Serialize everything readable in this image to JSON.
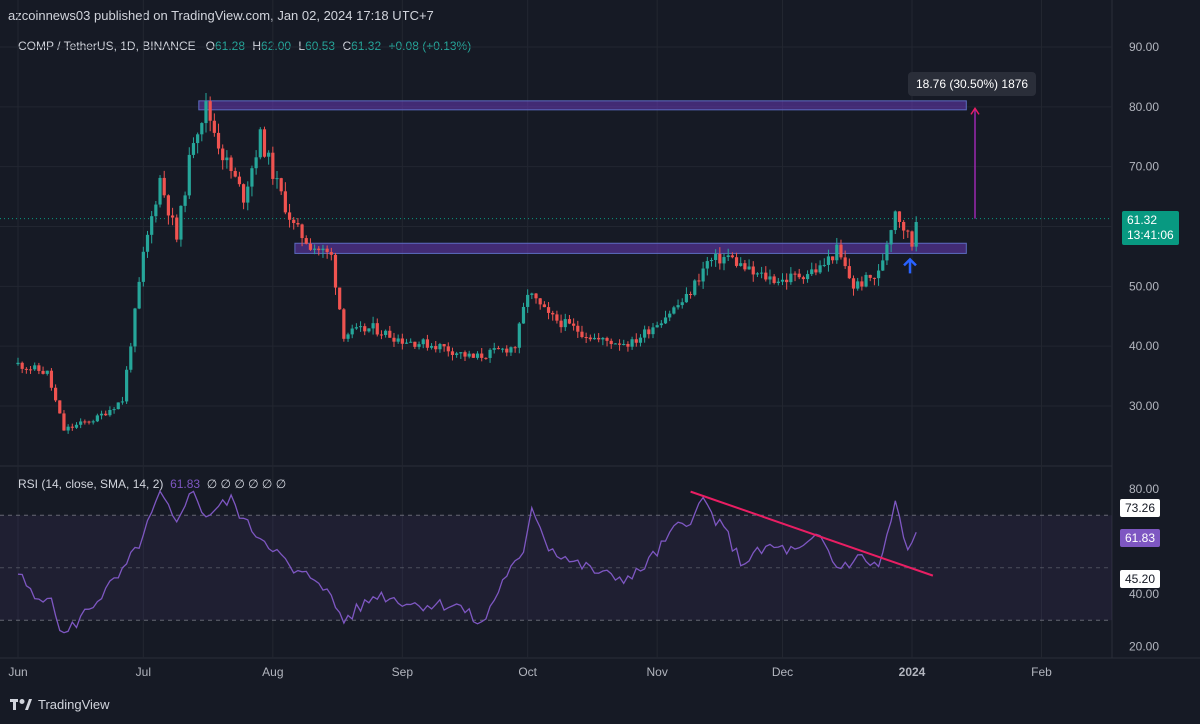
{
  "header": {
    "text": "azcoinnews03 published on TradingView.com, Jan 02, 2024 17:18 UTC+7"
  },
  "legend": {
    "symbol": "COMP / TetherUS, 1D, BINANCE",
    "open_label": "O",
    "open": "61.28",
    "high_label": "H",
    "high": "62.00",
    "low_label": "L",
    "low": "60.53",
    "close_label": "C",
    "close": "61.32",
    "change": "+0.08 (+0.13%)"
  },
  "measure_label": "18.76 (30.50%) 1876",
  "price_tag": {
    "price": "61.32",
    "countdown": "13:41:06"
  },
  "rsi_legend": {
    "title": "RSI (14, close, SMA, 14, 2)",
    "value": "61.83",
    "rest": "∅  ∅  ∅  ∅  ∅  ∅"
  },
  "rsi_tags": {
    "upper": "73.26",
    "current": "61.83",
    "lower": "45.20"
  },
  "footer": {
    "brand": "TradingView"
  },
  "colors": {
    "up": "#26a69a",
    "down": "#ef5350",
    "rsi": "#7e57c2",
    "zone": "#673ab7",
    "trend": "#e91e63",
    "arrow": "#2962ff"
  },
  "chart_data": [
    {
      "type": "candlestick",
      "title": "COMP / TetherUS, 1D, BINANCE",
      "ylim": [
        20,
        94
      ],
      "y_ticks": [
        "90.00",
        "80.00",
        "70.00",
        "60.00",
        "50.00",
        "40.00",
        "30.00"
      ],
      "x_ticks": [
        "Jun",
        "Jul",
        "Aug",
        "Sep",
        "Oct",
        "Nov",
        "Dec",
        "2024",
        "Feb"
      ],
      "close_path": [
        [
          "2023-06-01",
          37
        ],
        [
          "2023-06-08",
          35.5
        ],
        [
          "2023-06-12",
          26
        ],
        [
          "2023-06-20",
          28
        ],
        [
          "2023-06-26",
          31
        ],
        [
          "2023-07-01",
          55
        ],
        [
          "2023-07-05",
          68
        ],
        [
          "2023-07-09",
          58
        ],
        [
          "2023-07-13",
          75
        ],
        [
          "2023-07-16",
          80
        ],
        [
          "2023-07-20",
          72
        ],
        [
          "2023-07-25",
          65
        ],
        [
          "2023-07-29",
          75
        ],
        [
          "2023-08-02",
          67
        ],
        [
          "2023-08-06",
          60
        ],
        [
          "2023-08-10",
          57
        ],
        [
          "2023-08-15",
          55
        ],
        [
          "2023-08-18",
          42
        ],
        [
          "2023-08-25",
          43
        ],
        [
          "2023-09-01",
          41
        ],
        [
          "2023-09-10",
          40
        ],
        [
          "2023-09-18",
          38
        ],
        [
          "2023-09-28",
          40
        ],
        [
          "2023-10-01",
          49
        ],
        [
          "2023-10-06",
          45
        ],
        [
          "2023-10-12",
          43
        ],
        [
          "2023-10-18",
          41
        ],
        [
          "2023-10-26",
          40.5
        ],
        [
          "2023-11-01",
          44
        ],
        [
          "2023-11-08",
          48
        ],
        [
          "2023-11-13",
          54
        ],
        [
          "2023-11-18",
          55
        ],
        [
          "2023-11-24",
          52
        ],
        [
          "2023-12-01",
          51
        ],
        [
          "2023-12-10",
          53
        ],
        [
          "2023-12-14",
          56
        ],
        [
          "2023-12-18",
          50
        ],
        [
          "2023-12-24",
          52
        ],
        [
          "2023-12-28",
          63
        ],
        [
          "2024-01-01",
          57
        ],
        [
          "2024-01-02",
          61.32
        ]
      ],
      "zones": [
        {
          "from": "2023-07-15",
          "to": "2024-01-14",
          "low": 79.5,
          "high": 81
        },
        {
          "from": "2023-08-07",
          "to": "2024-01-14",
          "low": 55.5,
          "high": 57.2
        }
      ],
      "measure": {
        "from_price": 61.32,
        "to_price": 80.08,
        "change": 18.76,
        "change_pct": 30.5,
        "bars": 1876
      },
      "last_price": 61.32
    },
    {
      "type": "line",
      "title": "RSI (14, close, SMA, 14, 2)",
      "ylim": [
        16,
        86
      ],
      "y_ticks": [
        "80.00",
        "40.00",
        "20.00"
      ],
      "bands": [
        30,
        50,
        70
      ],
      "series": [
        {
          "name": "RSI",
          "points": [
            [
              "2023-06-01",
              48
            ],
            [
              "2023-06-05",
              38
            ],
            [
              "2023-06-08",
              40
            ],
            [
              "2023-06-12",
              24
            ],
            [
              "2023-06-20",
              38
            ],
            [
              "2023-06-26",
              48
            ],
            [
              "2023-07-01",
              62
            ],
            [
              "2023-07-05",
              78
            ],
            [
              "2023-07-09",
              66
            ],
            [
              "2023-07-12",
              80
            ],
            [
              "2023-07-16",
              70
            ],
            [
              "2023-07-22",
              76
            ],
            [
              "2023-07-26",
              66
            ],
            [
              "2023-08-01",
              58
            ],
            [
              "2023-08-06",
              48
            ],
            [
              "2023-08-12",
              46
            ],
            [
              "2023-08-18",
              30
            ],
            [
              "2023-08-26",
              40
            ],
            [
              "2023-09-04",
              36
            ],
            [
              "2023-09-14",
              36
            ],
            [
              "2023-09-20",
              28
            ],
            [
              "2023-09-26",
              48
            ],
            [
              "2023-09-30",
              54
            ],
            [
              "2023-10-02",
              74
            ],
            [
              "2023-10-06",
              58
            ],
            [
              "2023-10-12",
              52
            ],
            [
              "2023-10-20",
              47
            ],
            [
              "2023-10-26",
              46
            ],
            [
              "2023-11-01",
              56
            ],
            [
              "2023-11-06",
              66
            ],
            [
              "2023-11-10",
              70
            ],
            [
              "2023-11-12",
              76
            ],
            [
              "2023-11-15",
              68
            ],
            [
              "2023-11-18",
              62
            ],
            [
              "2023-11-21",
              52
            ],
            [
              "2023-11-28",
              58
            ],
            [
              "2023-12-05",
              56
            ],
            [
              "2023-12-10",
              62
            ],
            [
              "2023-12-14",
              50
            ],
            [
              "2023-12-20",
              54
            ],
            [
              "2023-12-24",
              50
            ],
            [
              "2023-12-28",
              74
            ],
            [
              "2023-12-31",
              56
            ],
            [
              "2024-01-02",
              61.83
            ]
          ]
        }
      ],
      "trendline": [
        [
          "2023-11-09",
          79
        ],
        [
          "2024-01-06",
          47
        ]
      ],
      "last_value": 61.83
    }
  ]
}
